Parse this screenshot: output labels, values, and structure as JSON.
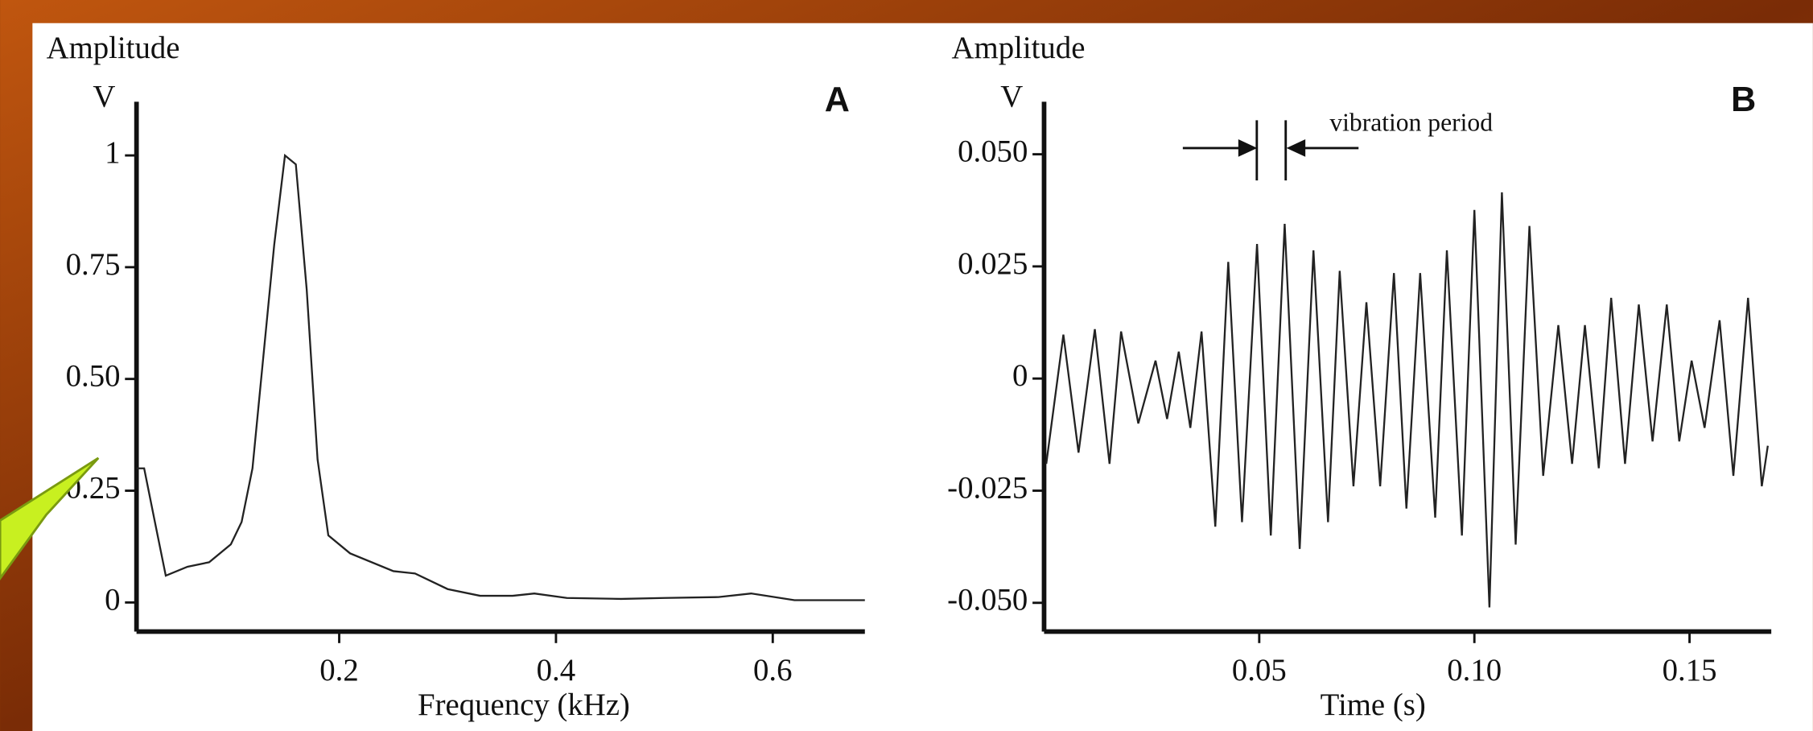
{
  "chart_data": [
    {
      "type": "line",
      "y_label": "Amplitude",
      "y_unit": "V",
      "panel_label": "A",
      "x_label": "Frequency (kHz)",
      "color": "#222222",
      "x": [
        0.013,
        0.02,
        0.03,
        0.04,
        0.06,
        0.08,
        0.1,
        0.11,
        0.12,
        0.13,
        0.14,
        0.15,
        0.16,
        0.17,
        0.18,
        0.19,
        0.21,
        0.25,
        0.27,
        0.3,
        0.33,
        0.36,
        0.38,
        0.41,
        0.46,
        0.5,
        0.55,
        0.58,
        0.62,
        0.685
      ],
      "values": [
        0.3,
        0.3,
        0.18,
        0.06,
        0.08,
        0.09,
        0.13,
        0.18,
        0.3,
        0.55,
        0.8,
        1.0,
        0.98,
        0.7,
        0.32,
        0.15,
        0.11,
        0.07,
        0.065,
        0.03,
        0.015,
        0.015,
        0.02,
        0.01,
        0.008,
        0.01,
        0.012,
        0.02,
        0.005,
        0.005
      ],
      "xlim": [
        0.013,
        0.685
      ],
      "ylim": [
        -0.065,
        1.12
      ],
      "xticks": [
        0.2,
        0.4,
        0.6
      ],
      "yticks": [
        0,
        {
          "value": 0.25,
          "label": "0.25"
        },
        {
          "value": 0.5,
          "label": "0.50"
        },
        0.75,
        1
      ]
    },
    {
      "type": "line",
      "y_label": "Amplitude",
      "y_unit": "V",
      "panel_label": "B",
      "x_label": "Time (s)",
      "annotation": "vibration period",
      "color": "#222222",
      "x": [
        0.0005,
        0.0045,
        0.008,
        0.0118,
        0.0152,
        0.0179,
        0.0219,
        0.0259,
        0.0286,
        0.0313,
        0.034,
        0.0366,
        0.0398,
        0.0428,
        0.046,
        0.0495,
        0.0527,
        0.0559,
        0.0594,
        0.0626,
        0.066,
        0.0687,
        0.0719,
        0.0749,
        0.0781,
        0.0813,
        0.0842,
        0.0874,
        0.0909,
        0.0936,
        0.0971,
        0.1,
        0.1035,
        0.1064,
        0.1096,
        0.1128,
        0.116,
        0.1195,
        0.1227,
        0.1257,
        0.1289,
        0.1318,
        0.135,
        0.1382,
        0.1414,
        0.1447,
        0.1476,
        0.1505,
        0.1535,
        0.157,
        0.1602,
        0.1636,
        0.1668,
        0.1682
      ],
      "values": [
        -0.019,
        0.0098,
        -0.0165,
        0.011,
        -0.019,
        0.0105,
        -0.01,
        0.004,
        -0.009,
        0.006,
        -0.011,
        0.0105,
        -0.033,
        0.026,
        -0.032,
        0.03,
        -0.035,
        0.0345,
        -0.038,
        0.0286,
        -0.032,
        0.024,
        -0.024,
        0.017,
        -0.024,
        0.0235,
        -0.029,
        0.0235,
        -0.031,
        0.0286,
        -0.035,
        0.0376,
        -0.051,
        0.0415,
        -0.037,
        0.034,
        -0.0217,
        0.0119,
        -0.019,
        0.0119,
        -0.02,
        0.018,
        -0.019,
        0.0165,
        -0.014,
        0.0165,
        -0.014,
        0.004,
        -0.011,
        0.013,
        -0.0217,
        0.018,
        -0.024,
        -0.015
      ],
      "xlim": [
        0,
        0.169
      ],
      "ylim": [
        -0.0564,
        0.0617
      ],
      "xticks": [
        0.05,
        {
          "value": 0.1,
          "label": "0.10"
        },
        0.15
      ],
      "yticks": [
        {
          "value": -0.05,
          "label": "-0.050"
        },
        {
          "value": -0.025,
          "label": "-0.025"
        },
        0,
        {
          "value": 0.025,
          "label": "0.025"
        },
        {
          "value": 0.05,
          "label": "0.050"
        }
      ]
    }
  ]
}
